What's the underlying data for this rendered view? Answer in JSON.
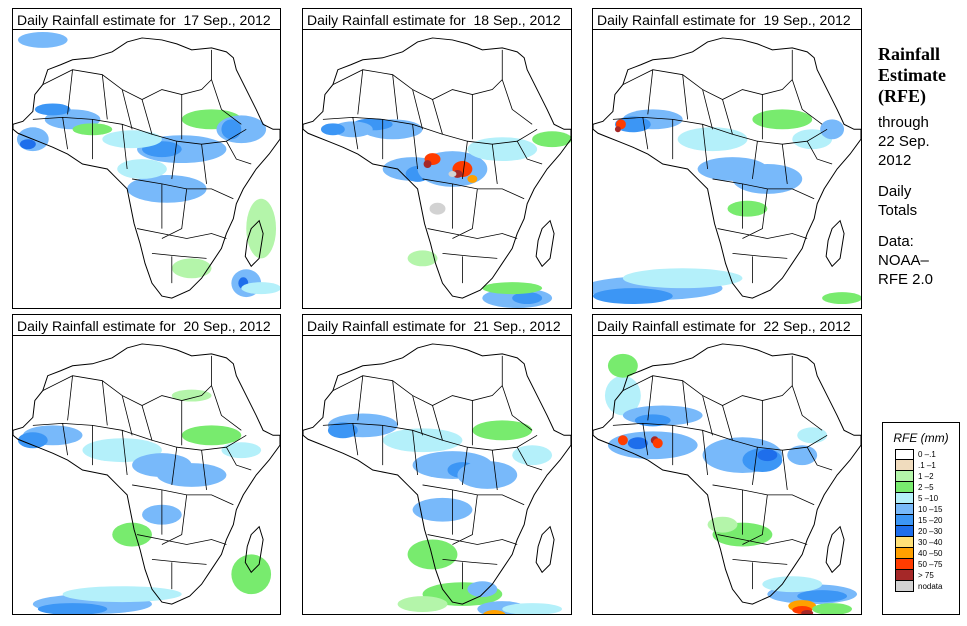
{
  "panels": [
    {
      "title": "Daily Rainfall estimate for  17 Sep., 2012",
      "date": "17 Sep., 2012"
    },
    {
      "title": "Daily Rainfall estimate for  18 Sep., 2012",
      "date": "18 Sep., 2012"
    },
    {
      "title": "Daily Rainfall estimate for  19 Sep., 2012",
      "date": "19 Sep., 2012"
    },
    {
      "title": "Daily Rainfall estimate for  20 Sep., 2012",
      "date": "20 Sep., 2012"
    },
    {
      "title": "Daily Rainfall estimate for  21 Sep., 2012",
      "date": "21 Sep., 2012"
    },
    {
      "title": "Daily Rainfall estimate for  22 Sep., 2012",
      "date": "22 Sep., 2012"
    }
  ],
  "sidebar": {
    "title_line1": "Rainfall",
    "title_line2": "Estimate",
    "title_line3": "(RFE)",
    "through_label": "through",
    "through_date_line1": "22 Sep.",
    "through_date_line2": "2012",
    "totals_line1": "Daily",
    "totals_line2": "Totals",
    "data_label": "Data:",
    "source_line1": "NOAA–",
    "source_line2": "RFE 2.0"
  },
  "legend": {
    "title": "RFE (mm)",
    "items": [
      {
        "label": "0 –.1",
        "color": "#ffffff"
      },
      {
        "label": ".1 –1",
        "color": "#f0dcbe"
      },
      {
        "label": "1 –2",
        "color": "#b4f5aa"
      },
      {
        "label": "2 –5",
        "color": "#78eb6e"
      },
      {
        "label": "5 –10",
        "color": "#b4f0fa"
      },
      {
        "label": "10 –15",
        "color": "#78b9fa"
      },
      {
        "label": "15 –20",
        "color": "#3c96f5"
      },
      {
        "label": "20 –30",
        "color": "#1e6eeb"
      },
      {
        "label": "30 –40",
        "color": "#ffe178"
      },
      {
        "label": "40 –50",
        "color": "#ffa000"
      },
      {
        "label": "50 –75",
        "color": "#ff3c00"
      },
      {
        "label": "> 75",
        "color": "#a52828"
      },
      {
        "label": "nodata",
        "color": "#d2d2d2"
      }
    ]
  },
  "rain": [
    {
      "blobs": [
        [
          "c5",
          60,
          90,
          28,
          10
        ],
        [
          "c6",
          40,
          80,
          18,
          6
        ],
        [
          "c3",
          200,
          90,
          30,
          10
        ],
        [
          "c5",
          170,
          120,
          45,
          14
        ],
        [
          "c6",
          150,
          120,
          20,
          8
        ],
        [
          "c4",
          120,
          110,
          30,
          9
        ],
        [
          "c5",
          230,
          100,
          25,
          14
        ],
        [
          "c6",
          220,
          100,
          10,
          10
        ],
        [
          "c5",
          155,
          160,
          40,
          14
        ],
        [
          "c4",
          130,
          140,
          25,
          10
        ],
        [
          "c2",
          180,
          240,
          20,
          10
        ],
        [
          "c5",
          235,
          255,
          15,
          14
        ],
        [
          "c7",
          232,
          255,
          5,
          6
        ],
        [
          "c5",
          20,
          110,
          16,
          12
        ],
        [
          "c7",
          15,
          115,
          8,
          5
        ],
        [
          "c5",
          30,
          10,
          25,
          8
        ],
        [
          "c2",
          250,
          200,
          15,
          30
        ],
        [
          "c4",
          250,
          260,
          20,
          6
        ],
        [
          "c3",
          80,
          100,
          20,
          6
        ]
      ]
    },
    {
      "blobs": [
        [
          "c5",
          90,
          100,
          30,
          10
        ],
        [
          "c6",
          70,
          95,
          20,
          6
        ],
        [
          "c5",
          110,
          140,
          30,
          12
        ],
        [
          "c6",
          115,
          145,
          12,
          8
        ],
        [
          "c5",
          150,
          140,
          35,
          18
        ],
        [
          "c10",
          130,
          130,
          8,
          6
        ],
        [
          "c11",
          125,
          135,
          4,
          4
        ],
        [
          "c10",
          160,
          140,
          10,
          8
        ],
        [
          "c11",
          155,
          145,
          5,
          4
        ],
        [
          "c12",
          135,
          180,
          8,
          6
        ],
        [
          "c4",
          200,
          120,
          35,
          12
        ],
        [
          "c3",
          250,
          110,
          20,
          8
        ],
        [
          "c5",
          50,
          100,
          20,
          8
        ],
        [
          "c6",
          30,
          100,
          12,
          6
        ],
        [
          "c2",
          120,
          230,
          15,
          8
        ],
        [
          "c5",
          215,
          270,
          35,
          10
        ],
        [
          "c6",
          225,
          270,
          15,
          6
        ],
        [
          "c3",
          210,
          260,
          30,
          6
        ],
        [
          "c12",
          150,
          145,
          4,
          3
        ],
        [
          "c9",
          170,
          150,
          5,
          4
        ]
      ]
    },
    {
      "blobs": [
        [
          "c5",
          60,
          90,
          30,
          10
        ],
        [
          "c6",
          40,
          95,
          18,
          8
        ],
        [
          "c10",
          28,
          95,
          5,
          5
        ],
        [
          "c11",
          25,
          100,
          3,
          3
        ],
        [
          "c4",
          120,
          110,
          35,
          12
        ],
        [
          "c5",
          140,
          140,
          35,
          12
        ],
        [
          "c3",
          190,
          90,
          30,
          10
        ],
        [
          "c5",
          175,
          150,
          35,
          15
        ],
        [
          "c4",
          220,
          110,
          20,
          10
        ],
        [
          "c5",
          240,
          100,
          12,
          10
        ],
        [
          "c3",
          155,
          180,
          20,
          8
        ],
        [
          "c5",
          60,
          260,
          70,
          12
        ],
        [
          "c6",
          40,
          268,
          40,
          8
        ],
        [
          "c4",
          90,
          250,
          60,
          10
        ],
        [
          "c3",
          250,
          270,
          20,
          6
        ]
      ]
    },
    {
      "blobs": [
        [
          "c5",
          40,
          100,
          30,
          10
        ],
        [
          "c6",
          20,
          105,
          15,
          8
        ],
        [
          "c10",
          95,
          118,
          4,
          4
        ],
        [
          "c4",
          110,
          115,
          40,
          12
        ],
        [
          "c5",
          150,
          130,
          30,
          12
        ],
        [
          "c3",
          200,
          100,
          30,
          10
        ],
        [
          "c5",
          180,
          140,
          35,
          12
        ],
        [
          "c4",
          230,
          115,
          20,
          8
        ],
        [
          "c5",
          150,
          180,
          20,
          10
        ],
        [
          "c3",
          120,
          200,
          20,
          12
        ],
        [
          "c5",
          80,
          270,
          60,
          10
        ],
        [
          "c6",
          60,
          275,
          35,
          6
        ],
        [
          "c4",
          110,
          260,
          60,
          8
        ],
        [
          "c3",
          240,
          240,
          20,
          20
        ],
        [
          "c2",
          180,
          60,
          20,
          6
        ]
      ]
    },
    {
      "blobs": [
        [
          "c5",
          60,
          90,
          35,
          12
        ],
        [
          "c6",
          40,
          95,
          15,
          8
        ],
        [
          "c4",
          120,
          105,
          40,
          12
        ],
        [
          "c5",
          150,
          130,
          40,
          14
        ],
        [
          "c6",
          160,
          135,
          15,
          8
        ],
        [
          "c3",
          200,
          95,
          30,
          10
        ],
        [
          "c5",
          185,
          140,
          30,
          14
        ],
        [
          "c4",
          230,
          120,
          20,
          10
        ],
        [
          "c5",
          140,
          175,
          30,
          12
        ],
        [
          "c3",
          130,
          220,
          25,
          15
        ],
        [
          "c3",
          160,
          260,
          40,
          12
        ],
        [
          "c5",
          180,
          255,
          15,
          8
        ],
        [
          "c5",
          200,
          275,
          25,
          8
        ],
        [
          "c9",
          192,
          282,
          12,
          6
        ],
        [
          "c10",
          195,
          285,
          8,
          5
        ],
        [
          "c11",
          192,
          288,
          6,
          4
        ],
        [
          "c2",
          120,
          270,
          25,
          8
        ],
        [
          "c4",
          230,
          275,
          30,
          6
        ]
      ]
    },
    {
      "blobs": [
        [
          "c4",
          30,
          60,
          18,
          20
        ],
        [
          "c3",
          30,
          30,
          15,
          12
        ],
        [
          "c5",
          70,
          80,
          40,
          10
        ],
        [
          "c6",
          60,
          85,
          18,
          6
        ],
        [
          "c5",
          60,
          110,
          45,
          14
        ],
        [
          "c10",
          30,
          105,
          5,
          5
        ],
        [
          "c11",
          62,
          105,
          4,
          4
        ],
        [
          "c10",
          65,
          108,
          5,
          5
        ],
        [
          "c7",
          45,
          108,
          10,
          6
        ],
        [
          "c5",
          150,
          120,
          40,
          18
        ],
        [
          "c6",
          170,
          125,
          20,
          12
        ],
        [
          "c7",
          175,
          120,
          10,
          6
        ],
        [
          "c4",
          220,
          100,
          15,
          8
        ],
        [
          "c5",
          210,
          120,
          15,
          10
        ],
        [
          "c3",
          150,
          200,
          30,
          12
        ],
        [
          "c2",
          130,
          190,
          15,
          8
        ],
        [
          "c5",
          220,
          260,
          45,
          10
        ],
        [
          "c6",
          230,
          262,
          25,
          6
        ],
        [
          "c9",
          210,
          272,
          14,
          6
        ],
        [
          "c10",
          210,
          276,
          10,
          4
        ],
        [
          "c11",
          215,
          279,
          6,
          3
        ],
        [
          "c4",
          200,
          250,
          30,
          8
        ],
        [
          "c3",
          240,
          275,
          20,
          6
        ]
      ]
    }
  ]
}
